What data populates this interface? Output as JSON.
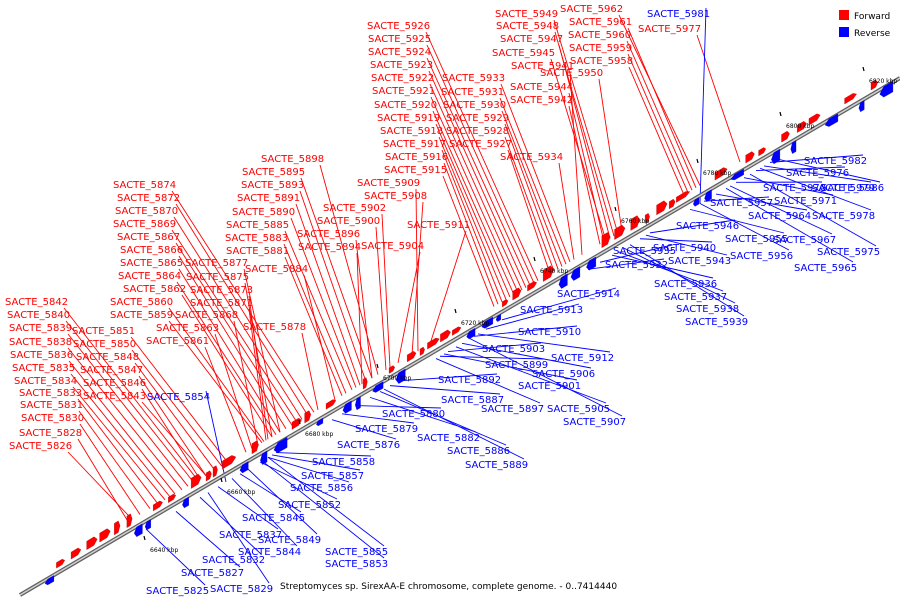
{
  "caption": "Streptomyces sp. SirexAA-E chromosome, complete genome. - 0..7414440",
  "legend": [
    {
      "label": "Forward",
      "color": "#ff0000"
    },
    {
      "label": "Reverse",
      "color": "#0000ff"
    }
  ],
  "colors": {
    "forward": "#ff0000",
    "reverse": "#0000ff",
    "backbone": "#808080"
  },
  "ticks": [
    "6640 kbp",
    "6660 kbp",
    "6680 kbp",
    "6700 kbp",
    "6720 kbp",
    "6740 kbp",
    "6760 kbp",
    "6780 kbp",
    "6800 kbp",
    "6820 kbp"
  ],
  "forward_genes": [
    "SACTE_5826",
    "SACTE_5828",
    "SACTE_5830",
    "SACTE_5831",
    "SACTE_5833",
    "SACTE_5834",
    "SACTE_5835",
    "SACTE_5836",
    "SACTE_5838",
    "SACTE_5839",
    "SACTE_5840",
    "SACTE_5842",
    "SACTE_5843",
    "SACTE_5846",
    "SACTE_5847",
    "SACTE_5848",
    "SACTE_5850",
    "SACTE_5851",
    "SACTE_5861",
    "SACTE_5863",
    "SACTE_5868",
    "SACTE_5859",
    "SACTE_5860",
    "SACTE_5862",
    "SACTE_5864",
    "SACTE_5865",
    "SACTE_5866",
    "SACTE_5867",
    "SACTE_5869",
    "SACTE_5870",
    "SACTE_5872",
    "SACTE_5874",
    "SACTE_5871",
    "SACTE_5873",
    "SACTE_5875",
    "SACTE_5877",
    "SACTE_5878",
    "SACTE_5884",
    "SACTE_5881",
    "SACTE_5883",
    "SACTE_5885",
    "SACTE_5890",
    "SACTE_5891",
    "SACTE_5893",
    "SACTE_5895",
    "SACTE_5898",
    "SACTE_5894",
    "SACTE_5896",
    "SACTE_5900",
    "SACTE_5902",
    "SACTE_5904",
    "SACTE_5908",
    "SACTE_5909",
    "SACTE_5911",
    "SACTE_5915",
    "SACTE_5916",
    "SACTE_5917",
    "SACTE_5918",
    "SACTE_5919",
    "SACTE_5920",
    "SACTE_5921",
    "SACTE_5922",
    "SACTE_5923",
    "SACTE_5924",
    "SACTE_5925",
    "SACTE_5926",
    "SACTE_5927",
    "SACTE_5928",
    "SACTE_5929",
    "SACTE_5930",
    "SACTE_5931",
    "SACTE_5933",
    "SACTE_5934",
    "SACTE_5941",
    "SACTE_5942",
    "SACTE_5944",
    "SACTE_5945",
    "SACTE_5947",
    "SACTE_5948",
    "SACTE_5949",
    "SACTE_5950",
    "SACTE_5958",
    "SACTE_5959",
    "SACTE_5960",
    "SACTE_5961",
    "SACTE_5962",
    "SACTE_5977"
  ],
  "reverse_genes": [
    "SACTE_5825",
    "SACTE_5827",
    "SACTE_5829",
    "SACTE_5832",
    "SACTE_5837",
    "SACTE_5844",
    "SACTE_5845",
    "SACTE_5849",
    "SACTE_5852",
    "SACTE_5853",
    "SACTE_5854",
    "SACTE_5855",
    "SACTE_5856",
    "SACTE_5857",
    "SACTE_5858",
    "SACTE_5876",
    "SACTE_5879",
    "SACTE_5880",
    "SACTE_5882",
    "SACTE_5886",
    "SACTE_5887",
    "SACTE_5889",
    "SACTE_5892",
    "SACTE_5897",
    "SACTE_5899",
    "SACTE_5901",
    "SACTE_5903",
    "SACTE_5905",
    "SACTE_5906",
    "SACTE_5907",
    "SACTE_5910",
    "SACTE_5912",
    "SACTE_5913",
    "SACTE_5914",
    "SACTE_5932",
    "SACTE_5935",
    "SACTE_5936",
    "SACTE_5937",
    "SACTE_5938",
    "SACTE_5939",
    "SACTE_5940",
    "SACTE_5943",
    "SACTE_5946",
    "SACTE_5955",
    "SACTE_5956",
    "SACTE_5957",
    "SACTE_5964",
    "SACTE_5965",
    "SACTE_5967",
    "SACTE_5970",
    "SACTE_5971",
    "SACTE_5975",
    "SACTE_5976",
    "SACTE_5978",
    "SACTE_5979",
    "SACTE_5981",
    "SACTE_5982",
    "SACTE_5986"
  ]
}
